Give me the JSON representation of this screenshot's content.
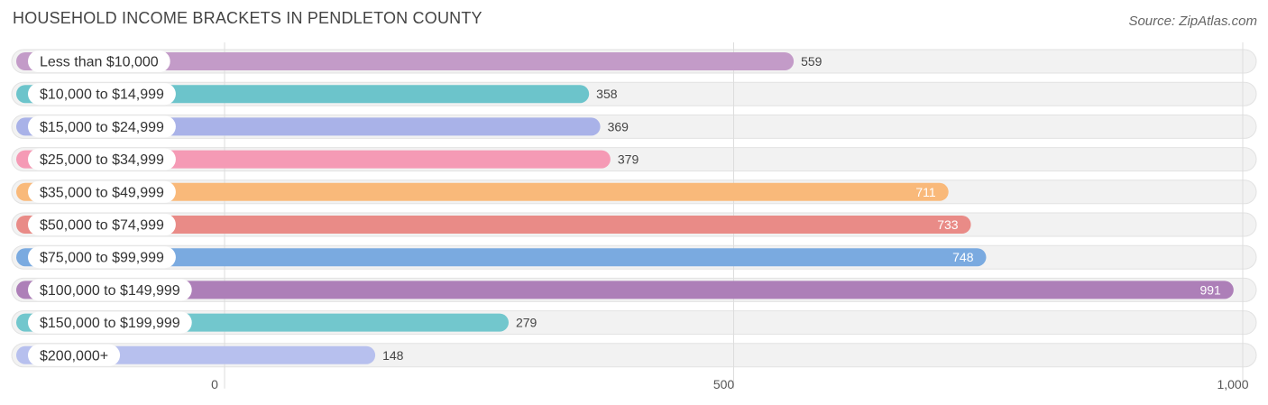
{
  "header": {
    "title": "HOUSEHOLD INCOME BRACKETS IN PENDLETON COUNTY",
    "source": "Source: ZipAtlas.com"
  },
  "chart_data": {
    "type": "bar",
    "orientation": "horizontal",
    "title": "HOUSEHOLD INCOME BRACKETS IN PENDLETON COUNTY",
    "xlim": [
      0,
      1000
    ],
    "x_ticks": [
      0,
      500,
      1000
    ],
    "x_tick_labels": [
      "0",
      "500",
      "1,000"
    ],
    "grid": true,
    "categories": [
      "Less than $10,000",
      "$10,000 to $14,999",
      "$15,000 to $24,999",
      "$25,000 to $34,999",
      "$35,000 to $49,999",
      "$50,000 to $74,999",
      "$75,000 to $99,999",
      "$100,000 to $149,999",
      "$150,000 to $199,999",
      "$200,000+"
    ],
    "values": [
      559,
      358,
      369,
      379,
      711,
      733,
      748,
      991,
      279,
      148
    ],
    "value_labels": [
      "559",
      "358",
      "369",
      "379",
      "711",
      "733",
      "748",
      "991",
      "279",
      "148"
    ],
    "colors": [
      "#c39bc8",
      "#6cc4cb",
      "#a9b2e8",
      "#f59ab5",
      "#f9b97a",
      "#e98b87",
      "#7aaae0",
      "#ad7fb8",
      "#72c7cd",
      "#b7c0ee"
    ]
  }
}
